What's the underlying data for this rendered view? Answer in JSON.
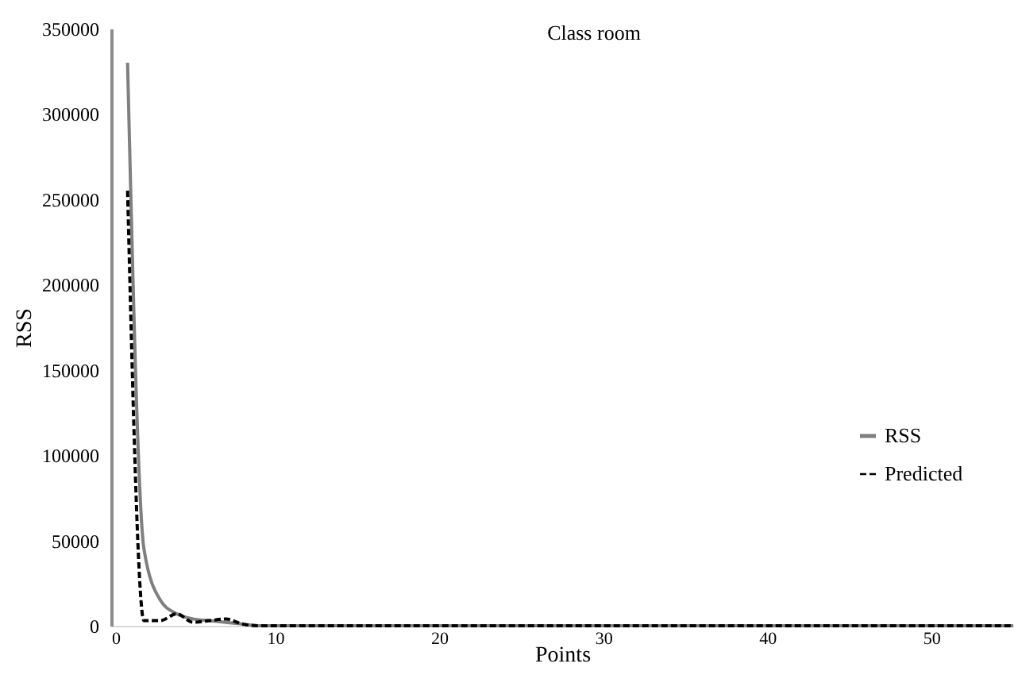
{
  "chart_data": {
    "type": "line",
    "title": "Class room",
    "xlabel": "Points",
    "ylabel": "RSS",
    "x": [
      1,
      2,
      3,
      4,
      5,
      6,
      7,
      8,
      9,
      10,
      11,
      12,
      13,
      14,
      15,
      16,
      17,
      18,
      19,
      20,
      21,
      22,
      23,
      24,
      25,
      26,
      27,
      28,
      29,
      30,
      31,
      32,
      33,
      34,
      35,
      36,
      37,
      38,
      39,
      40,
      41,
      42,
      43,
      44,
      45,
      46,
      47,
      48,
      49,
      50,
      51,
      52,
      53,
      54,
      55
    ],
    "series": [
      {
        "name": "RSS",
        "color": "#7f7f7f",
        "line_style": "solid",
        "values": [
          330000,
          45000,
          15000,
          7000,
          4000,
          3000,
          2000,
          1000,
          0,
          0,
          0,
          0,
          0,
          0,
          0,
          0,
          0,
          0,
          0,
          0,
          0,
          0,
          0,
          0,
          0,
          0,
          0,
          0,
          0,
          0,
          0,
          0,
          0,
          0,
          0,
          0,
          0,
          0,
          0,
          0,
          0,
          0,
          0,
          0,
          0,
          0,
          0,
          0,
          0,
          0,
          0,
          0,
          0,
          0,
          0
        ]
      },
      {
        "name": "Predicted",
        "color": "#000000",
        "line_style": "dashed",
        "values": [
          255000,
          3000,
          3000,
          7000,
          2000,
          3000,
          4000,
          1000,
          0,
          0,
          0,
          0,
          0,
          0,
          0,
          0,
          0,
          0,
          0,
          0,
          0,
          0,
          0,
          0,
          0,
          0,
          0,
          0,
          0,
          0,
          0,
          0,
          0,
          0,
          0,
          0,
          0,
          0,
          0,
          0,
          0,
          0,
          0,
          0,
          0,
          0,
          0,
          0,
          0,
          0,
          0,
          0,
          0,
          0,
          0
        ]
      }
    ],
    "xlim": [
      0,
      55
    ],
    "xticks": [
      0,
      10,
      20,
      30,
      40,
      50
    ],
    "ylim": [
      0,
      350000
    ],
    "yticks": [
      0,
      50000,
      100000,
      150000,
      200000,
      250000,
      300000,
      350000
    ],
    "grid": false,
    "legend": "right",
    "marker": "none"
  }
}
